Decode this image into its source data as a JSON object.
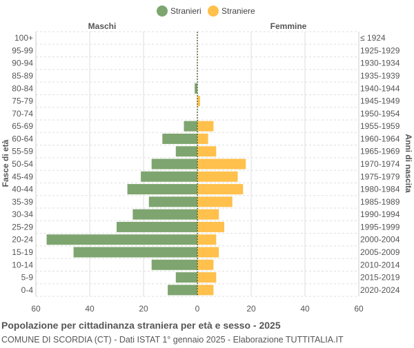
{
  "chart_data": {
    "type": "bar",
    "orientation": "horizontal-pyramid",
    "title": "Popolazione per cittadinanza straniera per età e sesso - 2025",
    "subtitle": "COMUNE DI SCORDIA (CT) - Dati ISTAT 1° gennaio 2025 - Elaborazione TUTTITALIA.IT",
    "left_header": "Maschi",
    "right_header": "Femmine",
    "ylabel_left": "Fasce di età",
    "ylabel_right": "Anni di nascita",
    "xlim": [
      -60,
      60
    ],
    "xticks": [
      "60",
      "40",
      "20",
      "0",
      "20",
      "40",
      "60"
    ],
    "grid": true,
    "legend_position": "top",
    "categories": [
      "100+",
      "95-99",
      "90-94",
      "85-89",
      "80-84",
      "75-79",
      "70-74",
      "65-69",
      "60-64",
      "55-59",
      "50-54",
      "45-49",
      "40-44",
      "35-39",
      "30-34",
      "25-29",
      "20-24",
      "15-19",
      "10-14",
      "5-9",
      "0-4"
    ],
    "birth_years": [
      "≤ 1924",
      "1925-1929",
      "1930-1934",
      "1935-1939",
      "1940-1944",
      "1945-1949",
      "1950-1954",
      "1955-1959",
      "1960-1964",
      "1965-1969",
      "1970-1974",
      "1975-1979",
      "1980-1984",
      "1985-1989",
      "1990-1994",
      "1995-1999",
      "2000-2004",
      "2005-2009",
      "2010-2014",
      "2015-2019",
      "2020-2024"
    ],
    "series": [
      {
        "name": "Stranieri",
        "color": "#7ea56f",
        "values": [
          0,
          0,
          0,
          0,
          1,
          0,
          0,
          5,
          13,
          8,
          17,
          21,
          26,
          18,
          24,
          30,
          56,
          46,
          17,
          8,
          11
        ]
      },
      {
        "name": "Straniere",
        "color": "#ffc04c",
        "values": [
          0,
          0,
          0,
          0,
          0,
          1,
          0,
          6,
          4,
          7,
          18,
          15,
          17,
          13,
          8,
          10,
          7,
          8,
          6,
          7,
          6
        ]
      }
    ]
  }
}
